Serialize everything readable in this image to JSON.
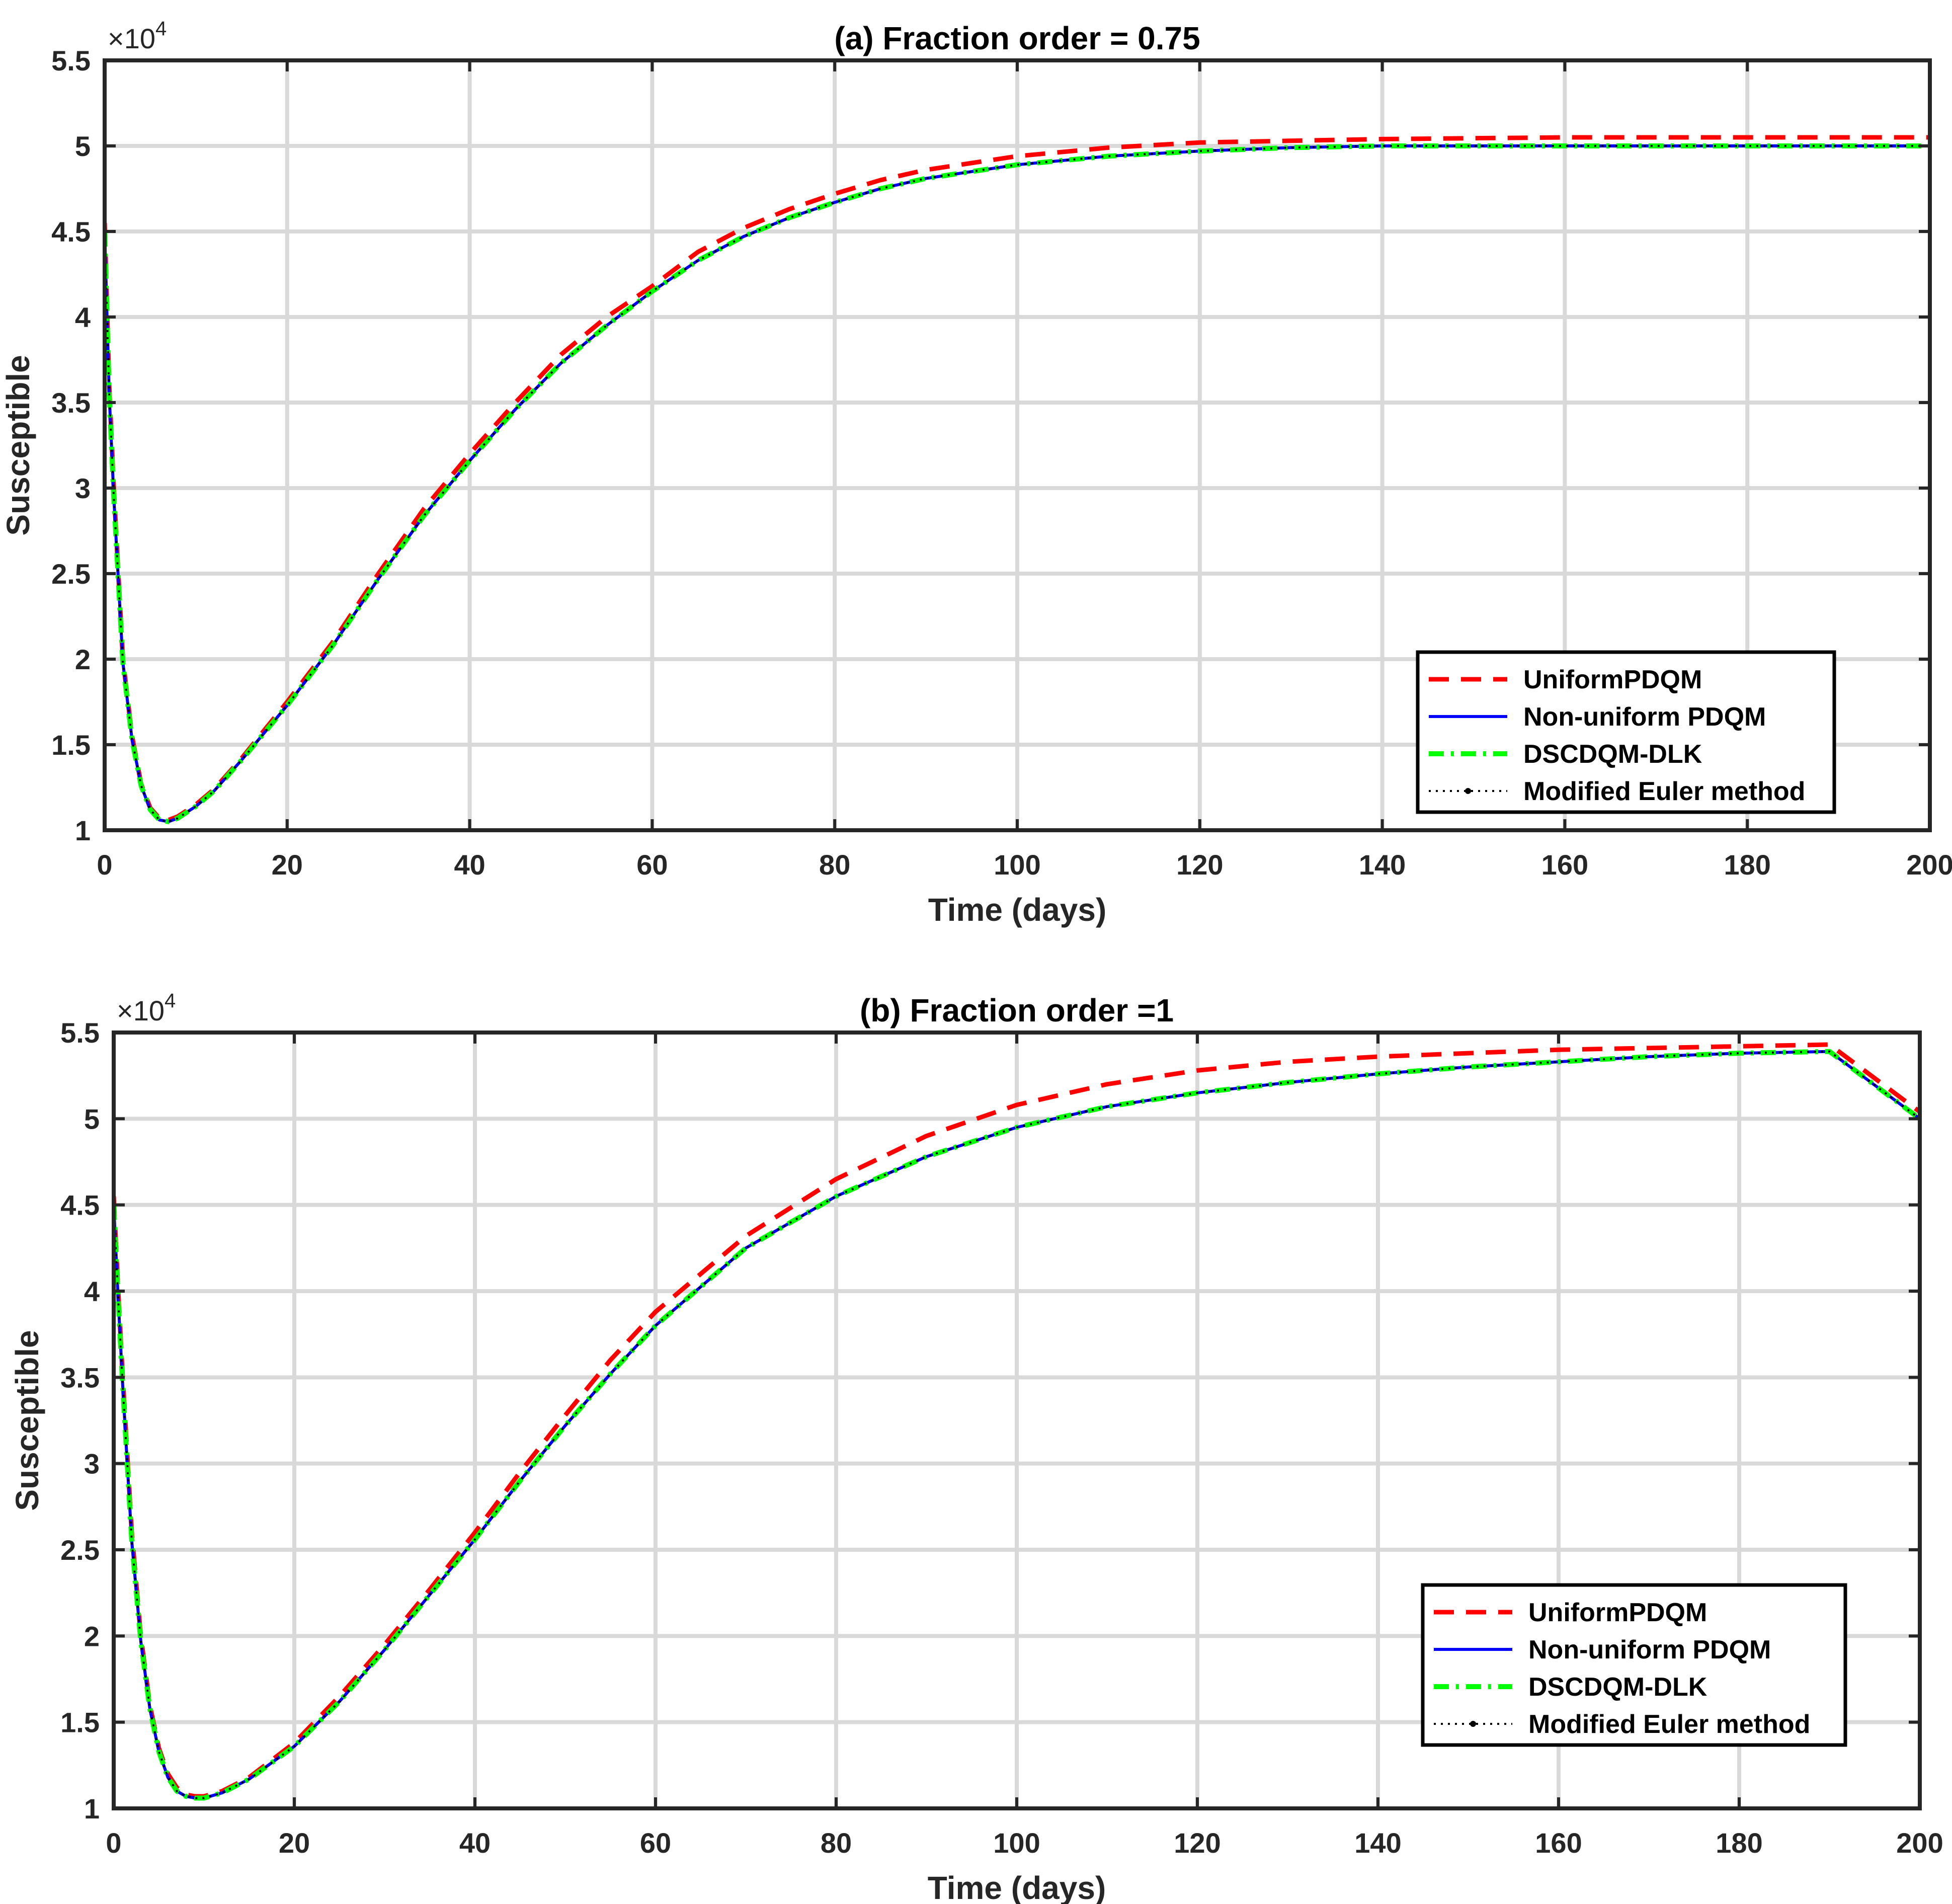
{
  "chart_data": [
    {
      "type": "line",
      "title": "(a) Fraction order = 0.75",
      "xlabel": "Time (days)",
      "ylabel": "Susceptible",
      "y_exponent_label": "×10",
      "y_exponent_power": "4",
      "xlim": [
        0,
        200
      ],
      "ylim": [
        1,
        5.5
      ],
      "xticks": [
        "0",
        "20",
        "40",
        "60",
        "80",
        "100",
        "120",
        "140",
        "160",
        "180",
        "200"
      ],
      "yticks": [
        "1",
        "1.5",
        "2",
        "2.5",
        "3",
        "3.5",
        "4",
        "4.5",
        "5",
        "5.5"
      ],
      "grid": true,
      "legend_position": "lower-right",
      "series": [
        {
          "name": "UniformPDQM",
          "color": "#ff0000",
          "style": "dashed",
          "x": [
            0,
            0.5,
            1,
            2,
            3,
            4,
            5,
            6,
            7,
            8,
            10,
            12,
            15,
            20,
            25,
            30,
            35,
            40,
            45,
            50,
            55,
            60,
            65,
            70,
            75,
            80,
            85,
            90,
            95,
            100,
            110,
            120,
            130,
            140,
            160,
            180,
            200
          ],
          "y": [
            4.55,
            3.6,
            3.0,
            2.0,
            1.55,
            1.27,
            1.13,
            1.07,
            1.06,
            1.08,
            1.15,
            1.24,
            1.42,
            1.75,
            2.1,
            2.5,
            2.88,
            3.2,
            3.5,
            3.78,
            4.0,
            4.18,
            4.38,
            4.52,
            4.63,
            4.72,
            4.8,
            4.86,
            4.9,
            4.94,
            4.99,
            5.02,
            5.03,
            5.04,
            5.05,
            5.05,
            5.05
          ]
        },
        {
          "name": "Non-uniform PDQM",
          "color": "#0000ff",
          "style": "solid",
          "x": [
            0,
            0.5,
            1,
            2,
            3,
            4,
            5,
            6,
            7,
            8,
            10,
            12,
            15,
            20,
            25,
            30,
            35,
            40,
            45,
            50,
            55,
            60,
            65,
            70,
            75,
            80,
            85,
            90,
            95,
            100,
            110,
            120,
            130,
            140,
            160,
            180,
            200
          ],
          "y": [
            4.5,
            3.55,
            2.95,
            1.98,
            1.53,
            1.26,
            1.12,
            1.06,
            1.05,
            1.07,
            1.14,
            1.23,
            1.41,
            1.73,
            2.08,
            2.47,
            2.84,
            3.16,
            3.46,
            3.73,
            3.95,
            4.15,
            4.33,
            4.47,
            4.58,
            4.67,
            4.75,
            4.81,
            4.85,
            4.89,
            4.94,
            4.97,
            4.99,
            5.0,
            5.0,
            5.0,
            5.0
          ]
        },
        {
          "name": "DSCDQM-DLK",
          "color": "#00ff00",
          "style": "dashdot",
          "x": [
            0,
            0.5,
            1,
            2,
            3,
            4,
            5,
            6,
            7,
            8,
            10,
            12,
            15,
            20,
            25,
            30,
            35,
            40,
            45,
            50,
            55,
            60,
            65,
            70,
            75,
            80,
            85,
            90,
            95,
            100,
            110,
            120,
            130,
            140,
            160,
            180,
            200
          ],
          "y": [
            4.5,
            3.55,
            2.95,
            1.98,
            1.53,
            1.26,
            1.12,
            1.06,
            1.05,
            1.07,
            1.14,
            1.23,
            1.41,
            1.73,
            2.08,
            2.47,
            2.84,
            3.16,
            3.46,
            3.73,
            3.95,
            4.15,
            4.33,
            4.47,
            4.58,
            4.67,
            4.75,
            4.81,
            4.85,
            4.89,
            4.94,
            4.97,
            4.99,
            5.0,
            5.0,
            5.0,
            5.0
          ]
        },
        {
          "name": "Modified Euler method",
          "color": "#000000",
          "style": "dotted-marker",
          "x": [
            0,
            0.5,
            1,
            2,
            3,
            4,
            5,
            6,
            7,
            8,
            10,
            12,
            15,
            20,
            25,
            30,
            35,
            40,
            45,
            50,
            55,
            60,
            65,
            70,
            75,
            80,
            85,
            90,
            95,
            100,
            110,
            120,
            130,
            140,
            160,
            180,
            200
          ],
          "y": [
            4.5,
            3.55,
            2.95,
            1.98,
            1.53,
            1.26,
            1.12,
            1.06,
            1.05,
            1.07,
            1.14,
            1.23,
            1.41,
            1.73,
            2.08,
            2.47,
            2.84,
            3.16,
            3.46,
            3.73,
            3.95,
            4.15,
            4.33,
            4.47,
            4.58,
            4.67,
            4.75,
            4.81,
            4.85,
            4.89,
            4.94,
            4.97,
            4.99,
            5.0,
            5.0,
            5.0,
            5.0
          ]
        }
      ]
    },
    {
      "type": "line",
      "title": "(b) Fraction order =1",
      "xlabel": "Time (days)",
      "ylabel": "Susceptible",
      "y_exponent_label": "×10",
      "y_exponent_power": "4",
      "xlim": [
        0,
        200
      ],
      "ylim": [
        1,
        5.5
      ],
      "xticks": [
        "0",
        "20",
        "40",
        "60",
        "80",
        "100",
        "120",
        "140",
        "160",
        "180",
        "200"
      ],
      "yticks": [
        "1",
        "1.5",
        "2",
        "2.5",
        "3",
        "3.5",
        "4",
        "4.5",
        "5",
        "5.5"
      ],
      "grid": true,
      "legend_position": "lower-right",
      "series": [
        {
          "name": "UniformPDQM",
          "color": "#ff0000",
          "style": "dashed",
          "x": [
            0,
            0.5,
            1,
            2,
            3,
            4,
            5,
            6,
            7,
            8,
            9,
            10,
            12,
            15,
            20,
            25,
            30,
            35,
            40,
            45,
            50,
            55,
            60,
            70,
            80,
            90,
            100,
            110,
            120,
            130,
            140,
            150,
            160,
            170,
            180,
            190,
            200
          ],
          "y": [
            4.55,
            4.0,
            3.5,
            2.6,
            2.0,
            1.6,
            1.35,
            1.2,
            1.12,
            1.08,
            1.07,
            1.07,
            1.1,
            1.18,
            1.38,
            1.65,
            1.95,
            2.27,
            2.6,
            2.95,
            3.28,
            3.6,
            3.88,
            4.32,
            4.65,
            4.9,
            5.08,
            5.2,
            5.28,
            5.33,
            5.36,
            5.38,
            5.4,
            5.41,
            5.42,
            5.43,
            5.04
          ]
        },
        {
          "name": "Non-uniform PDQM",
          "color": "#0000ff",
          "style": "solid",
          "x": [
            0,
            0.5,
            1,
            2,
            3,
            4,
            5,
            6,
            7,
            8,
            9,
            10,
            12,
            15,
            20,
            25,
            30,
            35,
            40,
            45,
            50,
            55,
            60,
            70,
            80,
            90,
            100,
            110,
            120,
            130,
            140,
            150,
            160,
            170,
            180,
            190,
            200
          ],
          "y": [
            4.5,
            3.95,
            3.45,
            2.55,
            1.97,
            1.58,
            1.33,
            1.18,
            1.1,
            1.07,
            1.06,
            1.06,
            1.09,
            1.17,
            1.36,
            1.62,
            1.92,
            2.24,
            2.56,
            2.9,
            3.22,
            3.52,
            3.8,
            4.25,
            4.55,
            4.78,
            4.95,
            5.07,
            5.15,
            5.21,
            5.26,
            5.3,
            5.33,
            5.36,
            5.38,
            5.39,
            5.0
          ]
        },
        {
          "name": "DSCDQM-DLK",
          "color": "#00ff00",
          "style": "dashdot",
          "x": [
            0,
            0.5,
            1,
            2,
            3,
            4,
            5,
            6,
            7,
            8,
            9,
            10,
            12,
            15,
            20,
            25,
            30,
            35,
            40,
            45,
            50,
            55,
            60,
            70,
            80,
            90,
            100,
            110,
            120,
            130,
            140,
            150,
            160,
            170,
            180,
            190,
            200
          ],
          "y": [
            4.5,
            3.95,
            3.45,
            2.55,
            1.97,
            1.58,
            1.33,
            1.18,
            1.1,
            1.07,
            1.06,
            1.06,
            1.09,
            1.17,
            1.36,
            1.62,
            1.92,
            2.24,
            2.56,
            2.9,
            3.22,
            3.52,
            3.8,
            4.25,
            4.55,
            4.78,
            4.95,
            5.07,
            5.15,
            5.21,
            5.26,
            5.3,
            5.33,
            5.36,
            5.38,
            5.39,
            5.0
          ]
        },
        {
          "name": "Modified Euler method",
          "color": "#000000",
          "style": "dotted-marker",
          "x": [
            0,
            0.5,
            1,
            2,
            3,
            4,
            5,
            6,
            7,
            8,
            9,
            10,
            12,
            15,
            20,
            25,
            30,
            35,
            40,
            45,
            50,
            55,
            60,
            70,
            80,
            90,
            100,
            110,
            120,
            130,
            140,
            150,
            160,
            170,
            180,
            190,
            200
          ],
          "y": [
            4.5,
            3.95,
            3.45,
            2.55,
            1.97,
            1.58,
            1.33,
            1.18,
            1.1,
            1.07,
            1.06,
            1.06,
            1.09,
            1.17,
            1.36,
            1.62,
            1.92,
            2.24,
            2.56,
            2.9,
            3.22,
            3.52,
            3.8,
            4.25,
            4.55,
            4.78,
            4.95,
            5.07,
            5.15,
            5.21,
            5.26,
            5.3,
            5.33,
            5.36,
            5.38,
            5.39,
            5.0
          ]
        }
      ]
    }
  ]
}
